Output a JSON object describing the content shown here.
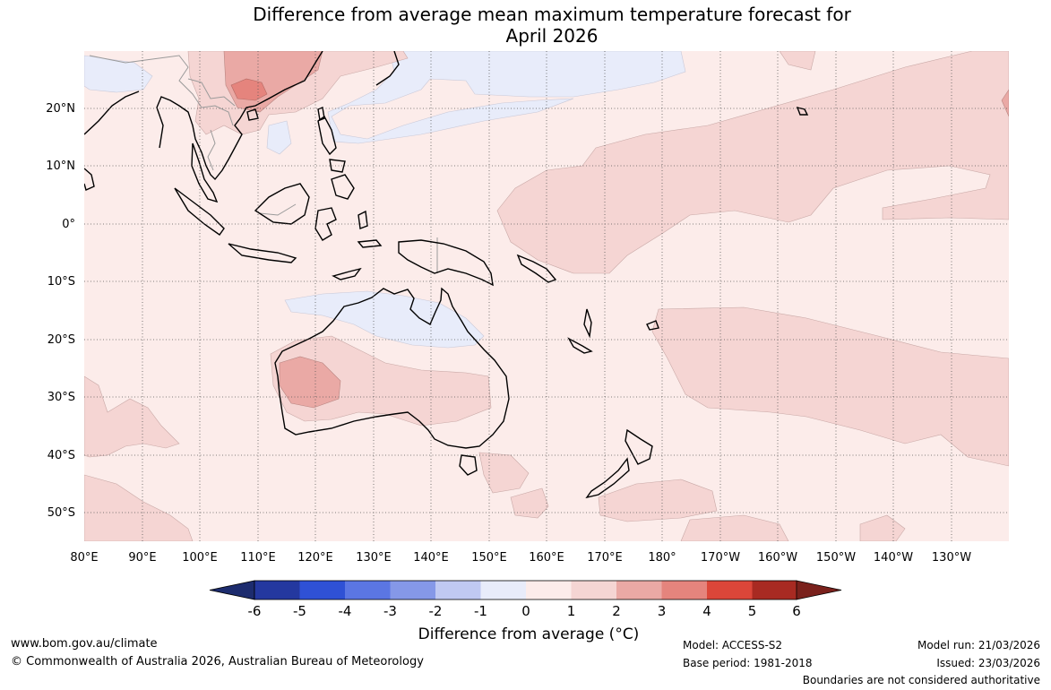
{
  "title_line1": "Difference from average mean maximum temperature forecast for",
  "title_line2": "April 2026",
  "lat_labels": [
    "20°N",
    "10°N",
    "0°",
    "10°S",
    "20°S",
    "30°S",
    "40°S",
    "50°S"
  ],
  "lon_labels": [
    "80°E",
    "90°E",
    "100°E",
    "110°E",
    "120°E",
    "130°E",
    "140°E",
    "150°E",
    "160°E",
    "170°E",
    "180°",
    "170°W",
    "160°W",
    "150°W",
    "140°W",
    "130°W"
  ],
  "colorbar": {
    "ticks": [
      "-6",
      "-5",
      "-4",
      "-3",
      "-2",
      "-1",
      "0",
      "1",
      "2",
      "3",
      "4",
      "5",
      "6"
    ],
    "colors": [
      "#24389f",
      "#2f51d5",
      "#5b76e3",
      "#8598e8",
      "#c0c9f2",
      "#e8ecfa",
      "#fcecea",
      "#f5d5d3",
      "#eaa9a5",
      "#e5847d",
      "#db4639",
      "#a82a22"
    ],
    "under_color": "#1d2c6e",
    "over_color": "#7a211c",
    "label": "Difference from average (°C)",
    "label_text": "Difference from average (",
    "label_unit": "°C)"
  },
  "footer": {
    "website": "www.bom.gov.au/climate",
    "copyright": "© Commonwealth of Australia 2026, Australian Bureau of Meteorology",
    "model": "Model: ACCESS-S2",
    "base_period": "Base period: 1981-2018",
    "model_run": "Model run: 21/03/2026",
    "issued": "Issued: 23/03/2026",
    "disclaimer": "Boundaries are not considered authoritative"
  }
}
